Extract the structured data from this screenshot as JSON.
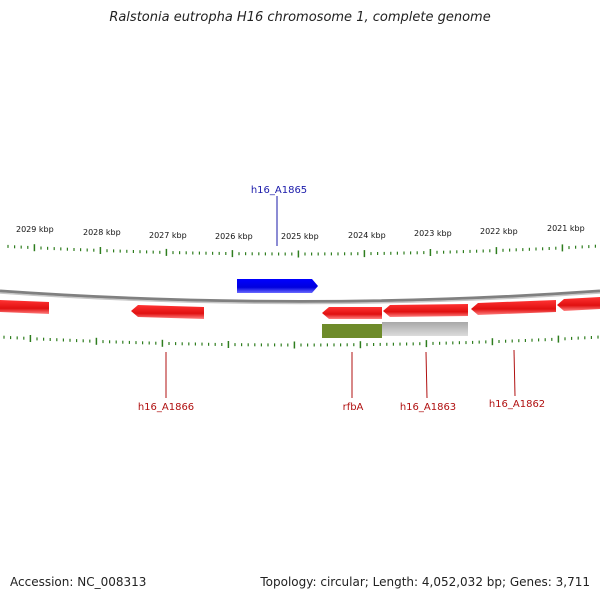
{
  "title": "Ralstonia eutropha H16 chromosome 1, complete genome",
  "footer": {
    "accession": "Accession: NC_008313",
    "summary": "Topology: circular; Length: 4,052,032 bp; Genes: 3,711"
  },
  "colors": {
    "forward_gene": "#0000ff",
    "reverse_gene": "#ee1111",
    "backbone": "#8a8a8a",
    "ticks": "#2e7d1e",
    "highlight_green": "#6e8b2a",
    "highlight_grey": "#b8b8b8",
    "label_blue": "#1a1aaa",
    "label_red": "#b01010"
  },
  "scale": {
    "unit": "kbp",
    "labels": [
      "2029 kbp",
      "2028 kbp",
      "2027 kbp",
      "2026 kbp",
      "2025 kbp",
      "2024 kbp",
      "2023 kbp",
      "2022 kbp",
      "2021 kbp"
    ]
  },
  "genes": [
    {
      "name": "h16_A1865",
      "strand": "forward",
      "labeled": true
    },
    {
      "name": "h16_A1866",
      "strand": "reverse",
      "labeled": true
    },
    {
      "name": "rfbA",
      "strand": "reverse",
      "labeled": true
    },
    {
      "name": "h16_A1863",
      "strand": "reverse",
      "labeled": true
    },
    {
      "name": "h16_A1862",
      "strand": "reverse",
      "labeled": true
    }
  ]
}
